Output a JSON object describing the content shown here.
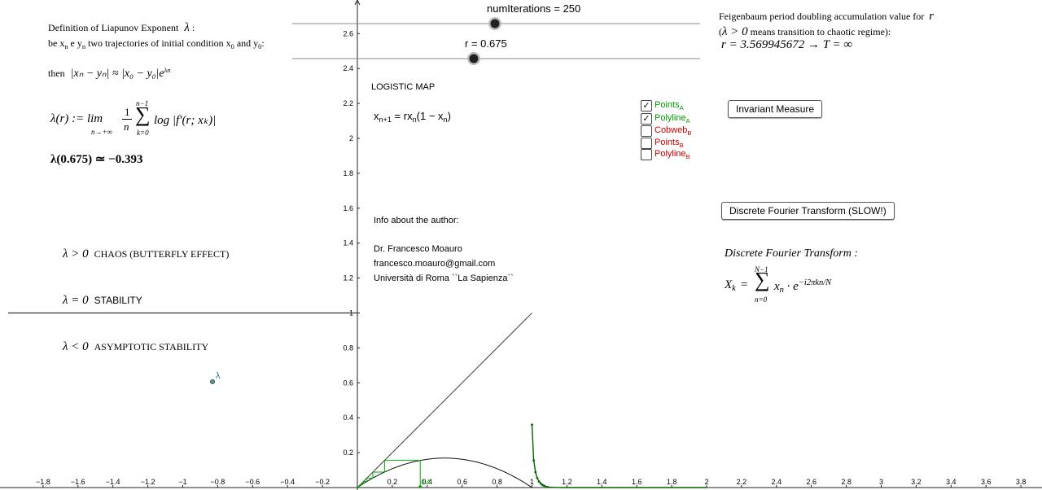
{
  "sliders": {
    "num_iterations_label": "numIterations = 250",
    "num_iterations_value": 250,
    "r_label": "r = 0.675",
    "r_value": 0.675
  },
  "definition": {
    "line1": "Definition of Liapunov Exponent",
    "lambda": "λ",
    "line2_a": "be x",
    "line2_sub_n1": "n",
    "line2_b": " e y",
    "line2_sub_n2": "n",
    "line2_c": " two trajectories of initial condition x",
    "line2_sub_0a": "0",
    "line2_d": " and y",
    "line2_sub_0b": "0",
    "line2_e": ":",
    "then": "then",
    "approx_formula": "|xₙ − yₙ| ≈ |x₀ − y₀|e",
    "approx_exp": "λn",
    "lambda_def_lhs": "λ(r) := lim",
    "lambda_def_lim_sub": "n→+∞",
    "lambda_def_frac_num": "1",
    "lambda_def_frac_den": "n",
    "lambda_def_sum_top": "n−1",
    "lambda_def_sum_bot": "k=0",
    "lambda_def_rhs": "log |f′(r; xₖ)|",
    "lambda_value": "λ(0.675) ≃ −0.393"
  },
  "regimes": {
    "chaos_math": "λ > 0",
    "chaos_text": "CHAOS (BUTTERFLY EFFECT)",
    "stability_math": "λ = 0",
    "stability_text": "STABILITY",
    "asymptotic_math": "λ < 0",
    "asymptotic_text": "ASYMPTOTIC STABILITY"
  },
  "lambda_point_label": "λ",
  "logistic": {
    "title": "LOGISTIC MAP",
    "formula_lhs": "x",
    "formula_lhs_sub": "n+1",
    "formula_eq": " = rx",
    "formula_rhs_sub": "n",
    "formula_paren_open": "(1 − x",
    "formula_paren_sub": "n",
    "formula_paren_close": ")"
  },
  "author": {
    "heading": "Info about the author:",
    "name": "Dr. Francesco Moauro",
    "email": "francesco.moauro@gmail.com",
    "university": "Università di Roma ``La Sapienza``"
  },
  "checkboxes": [
    {
      "label": "Points",
      "sub": "A",
      "checked": true,
      "color": "#009900"
    },
    {
      "label": "Polyline",
      "sub": "A",
      "checked": true,
      "color": "#009900"
    },
    {
      "label": "Cobweb",
      "sub": "B",
      "checked": false,
      "color": "#cc0000"
    },
    {
      "label": "Points",
      "sub": "B",
      "checked": false,
      "color": "#cc0000"
    },
    {
      "label": "Polyline",
      "sub": "B",
      "checked": false,
      "color": "#cc0000"
    }
  ],
  "buttons": {
    "invariant_measure": "Invariant Measure",
    "dft": "Discrete Fourier Transform (SLOW!)"
  },
  "feigenbaum": {
    "line1": "Feigenbaum period doubling accumulation value for",
    "line1_var": "r",
    "line2_open": "(",
    "line2_math": "λ > 0",
    "line2_text": " means transition to chaotic regime):",
    "line3": "r = 3.569945672 → T = ∞"
  },
  "dft": {
    "title": "Discrete Fourier Transform :",
    "lhs": "X",
    "lhs_sub": "k",
    "eq": " = ",
    "sum_top": "N−1",
    "sum_bot": "n=0",
    "term": "x",
    "term_sub": "n",
    "term_mid": " · e",
    "term_exp": "−i2πkn/N"
  },
  "axes": {
    "x_ticks": [
      "−1.8",
      "−1.6",
      "−1.4",
      "−1.2",
      "−1",
      "−0.8",
      "−0.6",
      "−0.4",
      "−0.2",
      "0.2",
      "0.4",
      "0.6",
      "0.8",
      "1",
      "1.2",
      "1.4",
      "1.6",
      "1.8",
      "2",
      "2.2",
      "2.4",
      "2.6",
      "2.8",
      "3",
      "3.2",
      "3.4",
      "3.6",
      "3.8"
    ],
    "y_ticks": [
      "0.2",
      "0.4",
      "0.6",
      "0.8",
      "1",
      "1.2",
      "1.4",
      "1.6",
      "1.8",
      "2",
      "2.2",
      "2.4",
      "2.6"
    ],
    "origin_label": "0.4"
  },
  "colors": {
    "cobweb": "#00aa00",
    "series_a": "#006400",
    "axis": "#222222",
    "slider_line": "#888888"
  }
}
